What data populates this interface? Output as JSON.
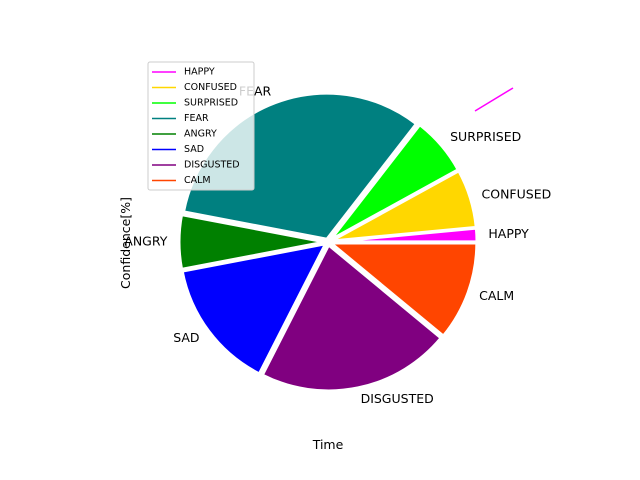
{
  "chart_data": {
    "type": "pie",
    "xlabel": "Time",
    "ylabel": "Confidence[%]",
    "categories": [
      "HAPPY",
      "CONFUSED",
      "SURPRISED",
      "FEAR",
      "ANGRY",
      "SAD",
      "DISGUSTED",
      "CALM"
    ],
    "values": [
      1.5,
      6.5,
      6.5,
      32.5,
      6.0,
      14.5,
      21.5,
      11.0
    ],
    "colors": [
      "#ff00ff",
      "#ffd700",
      "#00ff00",
      "#008080",
      "#008000",
      "#0000ff",
      "#800080",
      "#ff4500"
    ],
    "start_angle_deg": 0,
    "counterclock": true,
    "legend": {
      "placement": "upper-left",
      "entries": [
        "HAPPY",
        "CONFUSED",
        "SURPRISED",
        "FEAR",
        "ANGRY",
        "SAD",
        "DISGUSTED",
        "CALM"
      ]
    }
  }
}
